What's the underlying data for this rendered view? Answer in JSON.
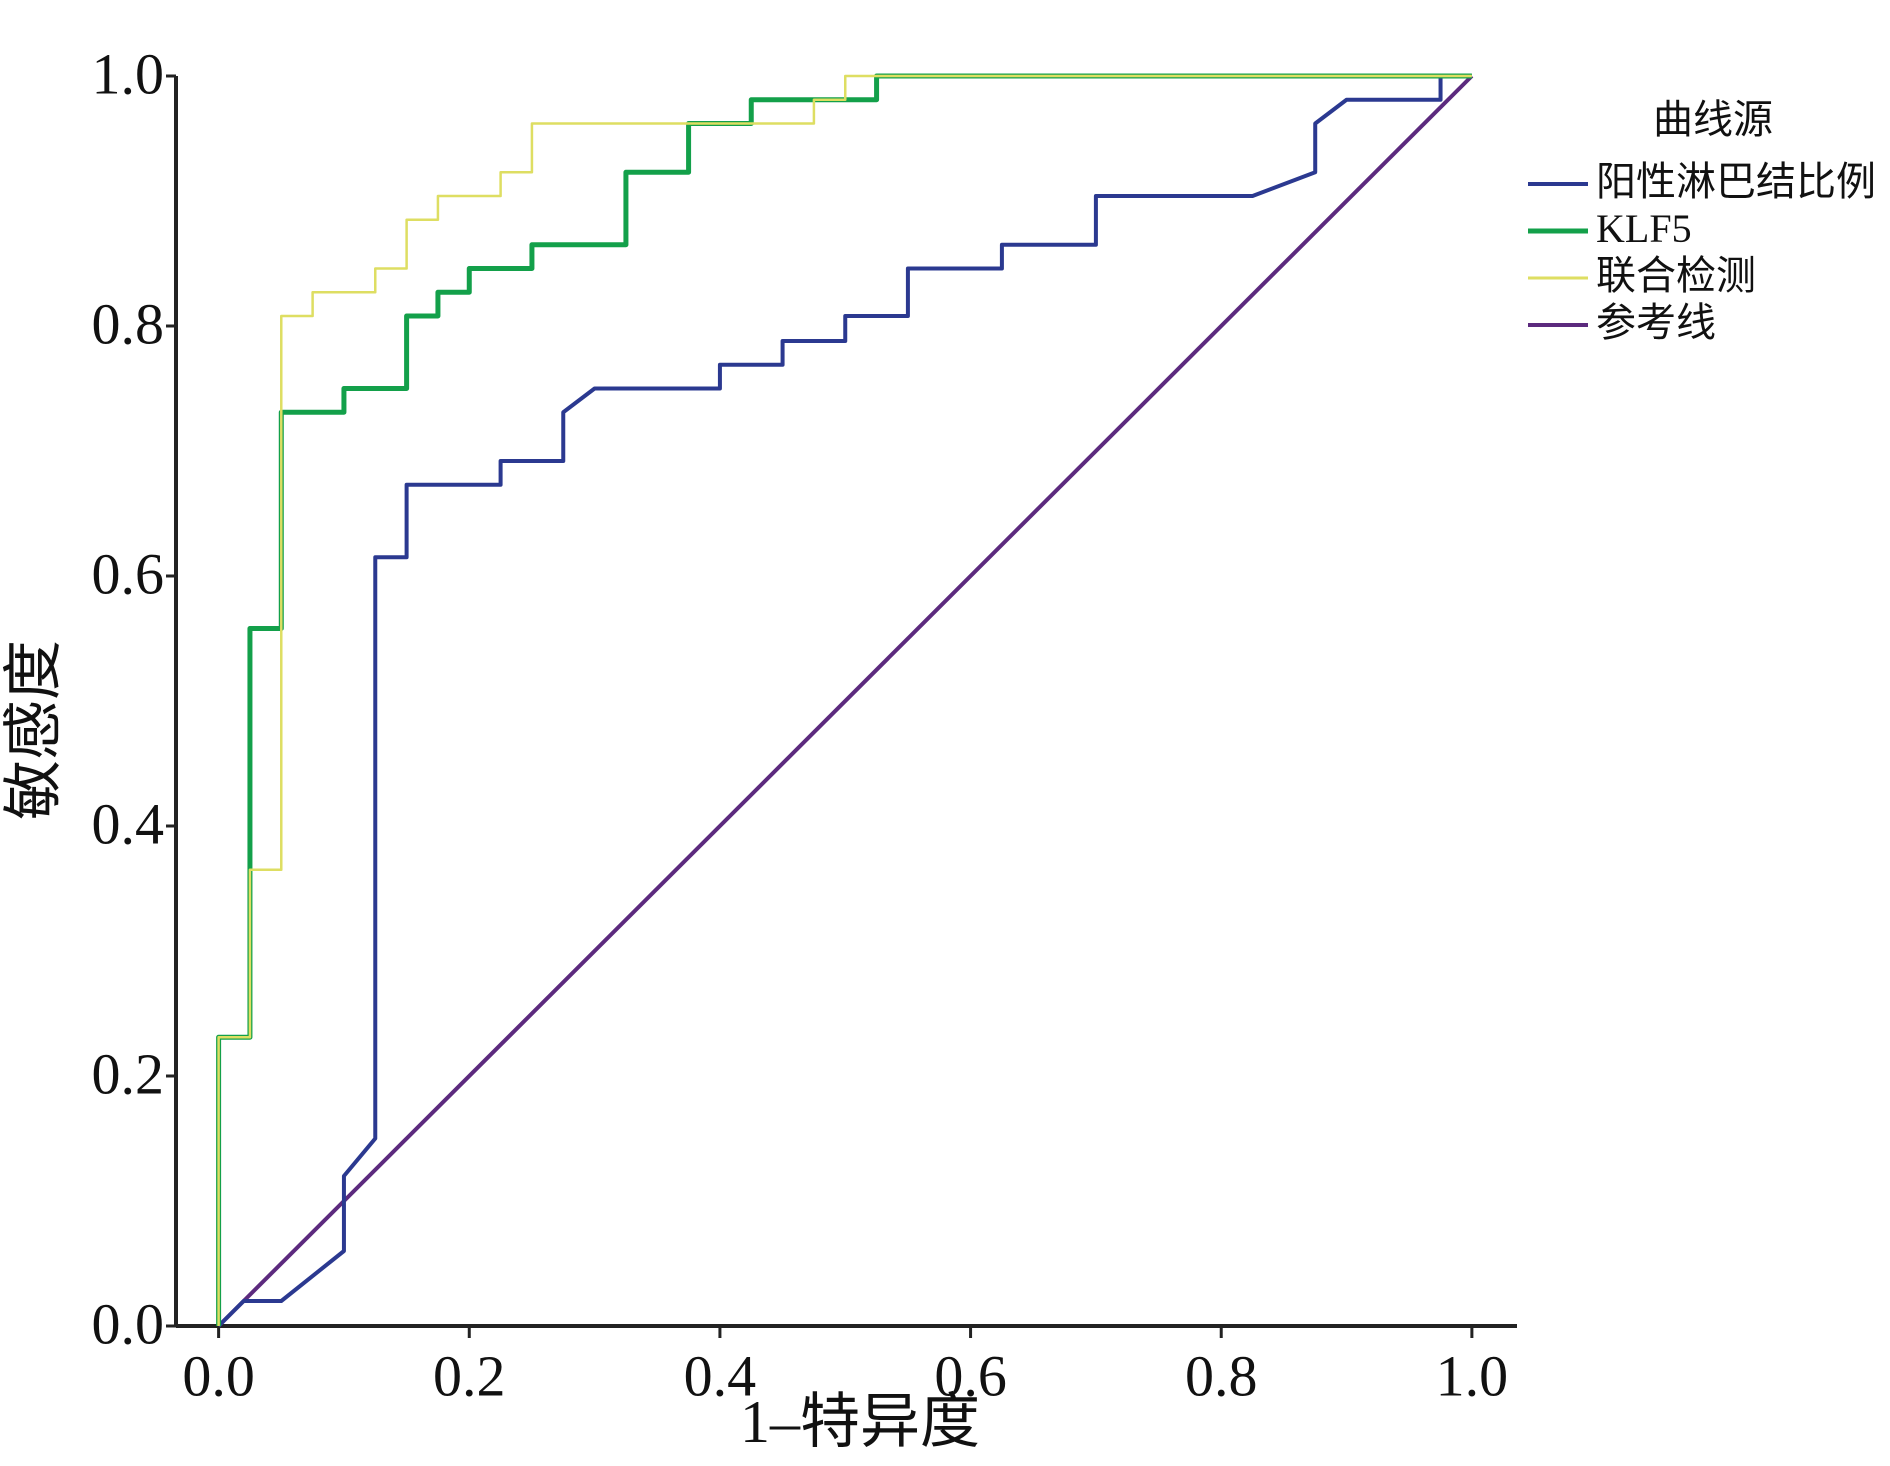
{
  "chart_data": {
    "type": "line",
    "x_label": "1–特异度",
    "y_label": "敏感度",
    "legend_title": "曲线源",
    "legend_position": "right",
    "xlim": [
      -0.034,
      1.036
    ],
    "ylim": [
      0,
      1
    ],
    "xticks": [
      {
        "value": 0,
        "label": "0.0"
      },
      {
        "value": 0.2,
        "label": "0.2"
      },
      {
        "value": 0.4,
        "label": "0.4"
      },
      {
        "value": 0.6,
        "label": "0.6"
      },
      {
        "value": 0.8,
        "label": "0.8"
      },
      {
        "value": 1,
        "label": "1.0"
      }
    ],
    "yticks": [
      {
        "value": 0,
        "label": "0.0"
      },
      {
        "value": 0.2,
        "label": "0.2"
      },
      {
        "value": 0.4,
        "label": "0.4"
      },
      {
        "value": 0.6,
        "label": "0.6"
      },
      {
        "value": 0.8,
        "label": "0.8"
      },
      {
        "value": 1,
        "label": "1.0"
      }
    ],
    "series": [
      {
        "name": "阳性淋巴结比例",
        "color": "#2b3990",
        "width": 4,
        "x": [
          0,
          0.02,
          0.05,
          0.1,
          0.1,
          0.125,
          0.125,
          0.15,
          0.15,
          0.225,
          0.225,
          0.275,
          0.275,
          0.3,
          0.4,
          0.4,
          0.45,
          0.45,
          0.5,
          0.5,
          0.55,
          0.55,
          0.625,
          0.625,
          0.7,
          0.7,
          0.825,
          0.875,
          0.875,
          0.9,
          0.975,
          0.975,
          1
        ],
        "values": [
          0,
          0.02,
          0.02,
          0.06,
          0.12,
          0.15,
          0.615,
          0.615,
          0.673,
          0.673,
          0.692,
          0.692,
          0.731,
          0.75,
          0.75,
          0.769,
          0.769,
          0.788,
          0.788,
          0.808,
          0.808,
          0.846,
          0.846,
          0.865,
          0.865,
          0.904,
          0.904,
          0.923,
          0.962,
          0.981,
          0.981,
          1,
          1
        ]
      },
      {
        "name": "KLF5",
        "color": "#13a04a",
        "width": 5,
        "x": [
          0,
          0,
          0.025,
          0.025,
          0.05,
          0.05,
          0.1,
          0.1,
          0.15,
          0.15,
          0.175,
          0.175,
          0.2,
          0.2,
          0.25,
          0.25,
          0.325,
          0.325,
          0.375,
          0.375,
          0.425,
          0.425,
          0.525,
          0.525,
          1
        ],
        "values": [
          0,
          0.231,
          0.231,
          0.558,
          0.558,
          0.731,
          0.731,
          0.75,
          0.75,
          0.808,
          0.808,
          0.827,
          0.827,
          0.846,
          0.846,
          0.865,
          0.865,
          0.923,
          0.923,
          0.962,
          0.962,
          0.981,
          0.981,
          1,
          1
        ]
      },
      {
        "name": "联合检测",
        "color": "#dede62",
        "width": 2.5,
        "x": [
          0,
          0,
          0.025,
          0.025,
          0.05,
          0.05,
          0.075,
          0.075,
          0.125,
          0.125,
          0.15,
          0.15,
          0.175,
          0.175,
          0.225,
          0.225,
          0.25,
          0.25,
          0.475,
          0.475,
          0.5,
          0.5,
          1
        ],
        "values": [
          0,
          0.231,
          0.231,
          0.365,
          0.365,
          0.808,
          0.808,
          0.827,
          0.827,
          0.846,
          0.846,
          0.885,
          0.885,
          0.904,
          0.904,
          0.923,
          0.923,
          0.962,
          0.962,
          0.981,
          0.981,
          1,
          1
        ]
      },
      {
        "name": "参考线",
        "color": "#5c2a7e",
        "width": 4,
        "x": [
          0,
          1
        ],
        "values": [
          0,
          1
        ]
      }
    ]
  }
}
